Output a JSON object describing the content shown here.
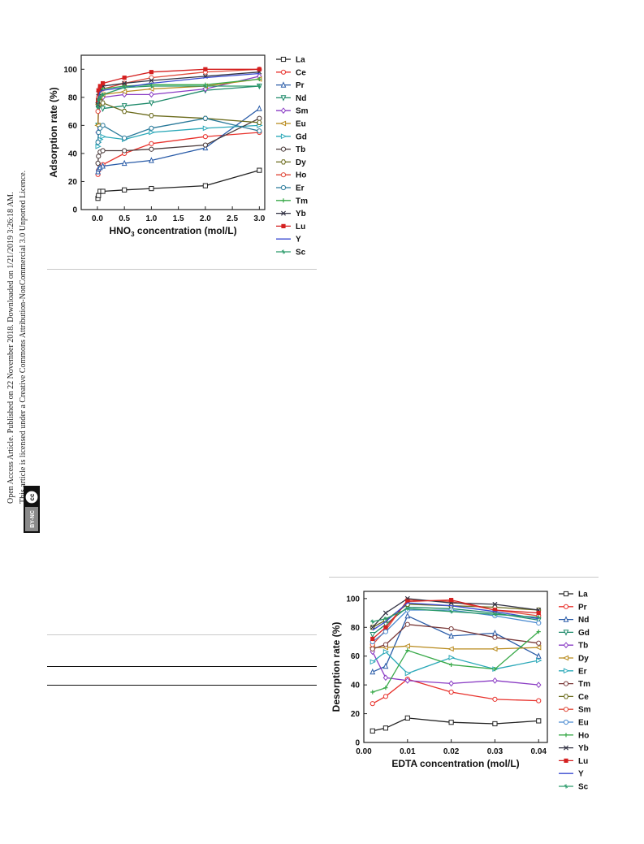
{
  "sidebar": {
    "line1": "Open Access Article. Published on 22 November 2018. Downloaded on 1/21/2019 3:26:18 AM.",
    "line2": "This article is licensed under a Creative Commons Attribution-NonCommercial 3.0 Unported Licence.",
    "badge_cc": "cc",
    "badge_text": "BY-NC"
  },
  "chart_data": [
    {
      "type": "line",
      "xlabel": "HNO3 concentration (mol/L)",
      "ylabel": "Adsorption rate (%)",
      "xlim": [
        -0.3,
        3.1
      ],
      "ylim": [
        0,
        110
      ],
      "x": [
        0.01,
        0.02,
        0.05,
        0.1,
        0.5,
        1.0,
        2.0,
        3.0
      ],
      "xticks": [
        "0.0",
        "0.5",
        "1.0",
        "1.5",
        "2.0",
        "2.5",
        "3.0"
      ],
      "xtick_values": [
        0,
        0.5,
        1.0,
        1.5,
        2.0,
        2.5,
        3.0
      ],
      "yticks": [
        0,
        20,
        40,
        60,
        80,
        100
      ],
      "legend_position": "right",
      "series": [
        {
          "name": "La",
          "color": "#222222",
          "marker": "square",
          "values": [
            8,
            10,
            13,
            13,
            14,
            15,
            17,
            28
          ]
        },
        {
          "name": "Ce",
          "color": "#e8322c",
          "marker": "circle",
          "values": [
            25,
            28,
            31,
            32,
            40,
            47,
            52,
            55
          ]
        },
        {
          "name": "Pr",
          "color": "#2a5ca8",
          "marker": "triangle",
          "values": [
            27,
            29,
            30,
            31,
            33,
            35,
            44,
            72
          ]
        },
        {
          "name": "Nd",
          "color": "#1e8a6a",
          "marker": "tri-down",
          "values": [
            60,
            72,
            75,
            72,
            74,
            76,
            85,
            88
          ]
        },
        {
          "name": "Sm",
          "color": "#8a3cc4",
          "marker": "diamond",
          "values": [
            55,
            70,
            78,
            80,
            82,
            82,
            86,
            95
          ]
        },
        {
          "name": "Eu",
          "color": "#b88a1c",
          "marker": "tri-left",
          "values": [
            60,
            75,
            80,
            82,
            84,
            86,
            88,
            93
          ]
        },
        {
          "name": "Gd",
          "color": "#2aa8b8",
          "marker": "tri-right",
          "values": [
            45,
            48,
            50,
            52,
            50,
            55,
            58,
            60
          ]
        },
        {
          "name": "Tb",
          "color": "#4a3a3a",
          "marker": "circle",
          "values": [
            33,
            38,
            41,
            42,
            42,
            43,
            46,
            65
          ]
        },
        {
          "name": "Dy",
          "color": "#6b6b1c",
          "marker": "hexagon",
          "values": [
            76,
            78,
            77,
            76,
            70,
            67,
            65,
            62
          ]
        },
        {
          "name": "Ho",
          "color": "#e04a3a",
          "marker": "circle",
          "values": [
            70,
            80,
            85,
            86,
            90,
            94,
            98,
            100
          ]
        },
        {
          "name": "Er",
          "color": "#2a7a9a",
          "marker": "circle",
          "values": [
            48,
            55,
            58,
            60,
            51,
            58,
            65,
            56
          ]
        },
        {
          "name": "Tm",
          "color": "#3aaa4a",
          "marker": "plus",
          "values": [
            78,
            82,
            85,
            86,
            88,
            89,
            89,
            93
          ]
        },
        {
          "name": "Yb",
          "color": "#333344",
          "marker": "cross",
          "values": [
            75,
            83,
            86,
            88,
            90,
            92,
            95,
            98
          ]
        },
        {
          "name": "Lu",
          "color": "#d42020",
          "marker": "filled-square",
          "values": [
            78,
            85,
            88,
            90,
            94,
            98,
            100,
            100
          ]
        },
        {
          "name": "Y",
          "color": "#3a4ad0",
          "marker": "none",
          "values": [
            74,
            80,
            84,
            85,
            87,
            90,
            94,
            97
          ]
        },
        {
          "name": "Sc",
          "color": "#2a9a6a",
          "marker": "star",
          "values": [
            73,
            78,
            80,
            82,
            87,
            88,
            88,
            88
          ]
        }
      ]
    },
    {
      "type": "line",
      "xlabel": "EDTA concentration (mol/L)",
      "ylabel": "Desorption rate (%)",
      "xlim": [
        0,
        0.042
      ],
      "ylim": [
        0,
        105
      ],
      "x": [
        0.002,
        0.005,
        0.01,
        0.02,
        0.03,
        0.04
      ],
      "xticks": [
        "0.00",
        "0.01",
        "0.02",
        "0.03",
        "0.04"
      ],
      "xtick_values": [
        0,
        0.01,
        0.02,
        0.03,
        0.04
      ],
      "yticks": [
        0,
        20,
        40,
        60,
        80,
        100
      ],
      "legend_position": "right",
      "series": [
        {
          "name": "La",
          "color": "#222222",
          "marker": "square",
          "values": [
            8,
            10,
            17,
            14,
            13,
            15
          ]
        },
        {
          "name": "Pr",
          "color": "#e8322c",
          "marker": "circle",
          "values": [
            27,
            32,
            44,
            35,
            30,
            29
          ]
        },
        {
          "name": "Nd",
          "color": "#2a5ca8",
          "marker": "triangle",
          "values": [
            49,
            53,
            88,
            74,
            76,
            60
          ]
        },
        {
          "name": "Gd",
          "color": "#1e8a6a",
          "marker": "tri-down",
          "values": [
            75,
            82,
            94,
            93,
            90,
            85
          ]
        },
        {
          "name": "Tb",
          "color": "#8a3cc4",
          "marker": "diamond",
          "values": [
            63,
            45,
            43,
            41,
            43,
            40
          ]
        },
        {
          "name": "Dy",
          "color": "#b88a1c",
          "marker": "tri-left",
          "values": [
            66,
            66,
            67,
            65,
            65,
            66
          ]
        },
        {
          "name": "Er",
          "color": "#2aa8b8",
          "marker": "tri-right",
          "values": [
            56,
            63,
            48,
            59,
            51,
            57
          ]
        },
        {
          "name": "Tm",
          "color": "#7a3a3a",
          "marker": "circle",
          "values": [
            65,
            68,
            82,
            79,
            73,
            69
          ]
        },
        {
          "name": "Ce",
          "color": "#6b6b1c",
          "marker": "hexagon",
          "values": [
            80,
            85,
            96,
            95,
            94,
            92
          ]
        },
        {
          "name": "Sm",
          "color": "#e04a3a",
          "marker": "circle",
          "values": [
            68,
            78,
            99,
            98,
            92,
            88
          ]
        },
        {
          "name": "Eu",
          "color": "#4a8ad0",
          "marker": "circle",
          "values": [
            70,
            77,
            92,
            92,
            88,
            83
          ]
        },
        {
          "name": "Ho",
          "color": "#3aaa4a",
          "marker": "plus",
          "values": [
            35,
            38,
            64,
            54,
            51,
            77
          ]
        },
        {
          "name": "Yb",
          "color": "#333344",
          "marker": "cross",
          "values": [
            80,
            90,
            100,
            97,
            96,
            92
          ]
        },
        {
          "name": "Lu",
          "color": "#d42020",
          "marker": "filled-square",
          "values": [
            72,
            80,
            98,
            99,
            92,
            90
          ]
        },
        {
          "name": "Y",
          "color": "#3a4ad0",
          "marker": "none",
          "values": [
            78,
            84,
            97,
            95,
            91,
            86
          ]
        },
        {
          "name": "Sc",
          "color": "#2a9a6a",
          "marker": "star",
          "values": [
            84,
            86,
            93,
            91,
            89,
            87
          ]
        }
      ]
    }
  ]
}
